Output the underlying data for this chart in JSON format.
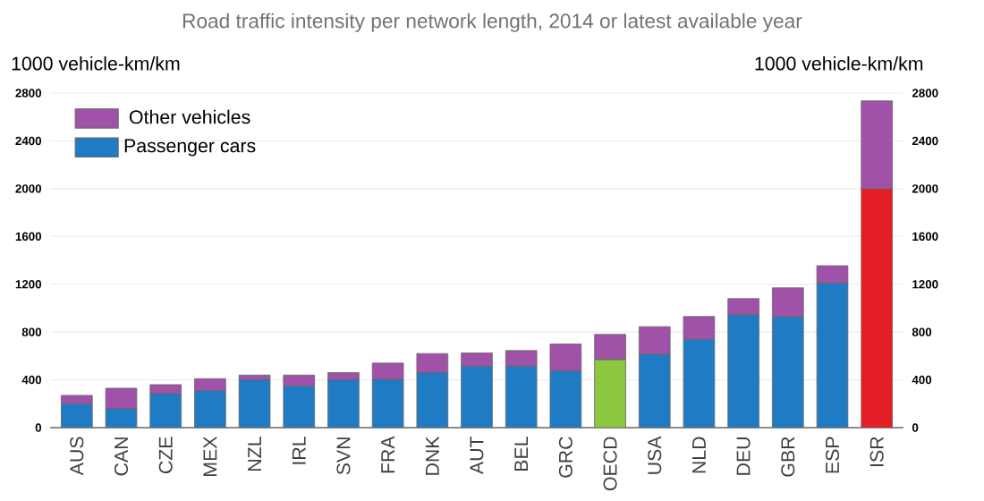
{
  "chart_data": {
    "type": "bar",
    "stacked": true,
    "title": "Road traffic intensity per network length, 2014 or latest available year",
    "ylabel": "1000 vehicle-km/km",
    "y2label": "1000 vehicle-km/km",
    "categories": [
      "AUS",
      "CAN",
      "CZE",
      "MEX",
      "NZL",
      "IRL",
      "SVN",
      "FRA",
      "DNK",
      "AUT",
      "BEL",
      "GRC",
      "OECD",
      "USA",
      "NLD",
      "DEU",
      "GBR",
      "ESP",
      "ISR"
    ],
    "series": [
      {
        "name": "Passenger cars",
        "color": "#1f7cc4",
        "colors": [
          "#1f7cc4",
          "#1f7cc4",
          "#1f7cc4",
          "#1f7cc4",
          "#1f7cc4",
          "#1f7cc4",
          "#1f7cc4",
          "#1f7cc4",
          "#1f7cc4",
          "#1f7cc4",
          "#1f7cc4",
          "#1f7cc4",
          "#8dc63f",
          "#1f7cc4",
          "#1f7cc4",
          "#1f7cc4",
          "#1f7cc4",
          "#1f7cc4",
          "#e31e24"
        ],
        "values": [
          200,
          160,
          285,
          310,
          400,
          350,
          400,
          405,
          460,
          515,
          515,
          475,
          570,
          615,
          740,
          945,
          930,
          1210,
          2000
        ]
      },
      {
        "name": "Other vehicles",
        "color": "#a052a8",
        "values": [
          70,
          170,
          75,
          100,
          40,
          90,
          60,
          135,
          160,
          110,
          130,
          225,
          210,
          230,
          190,
          135,
          240,
          145,
          735
        ]
      }
    ],
    "ylim": [
      0,
      2800
    ],
    "yticks": [
      0,
      400,
      800,
      1200,
      1600,
      2000,
      2400,
      2800
    ],
    "y2lim": [
      0,
      2800
    ],
    "y2ticks": [
      0,
      400,
      800,
      1200,
      1600,
      2000,
      2400,
      2800
    ],
    "grid": "y",
    "legend": "top left"
  }
}
